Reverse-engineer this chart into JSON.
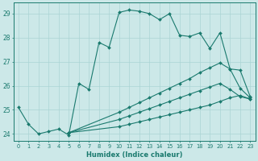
{
  "xlabel": "Humidex (Indice chaleur)",
  "xlim": [
    -0.5,
    23.5
  ],
  "ylim": [
    23.7,
    29.45
  ],
  "bg_color": "#cce8e8",
  "grid_color": "#aad4d4",
  "line_color": "#1a7a6e",
  "yticks": [
    24,
    25,
    26,
    27,
    28,
    29
  ],
  "xticks": [
    0,
    1,
    2,
    3,
    4,
    5,
    6,
    7,
    8,
    9,
    10,
    11,
    12,
    13,
    14,
    15,
    16,
    17,
    18,
    19,
    20,
    21,
    22,
    23
  ],
  "line1_x": [
    0,
    1,
    2,
    3,
    4,
    5,
    6,
    7,
    8,
    9,
    10,
    11,
    12,
    13,
    14,
    15,
    16,
    17,
    18,
    19,
    20,
    21,
    22,
    23
  ],
  "line1_y": [
    25.1,
    24.4,
    24.0,
    24.1,
    24.2,
    23.95,
    26.1,
    25.85,
    27.8,
    27.6,
    29.05,
    29.15,
    29.1,
    29.0,
    28.75,
    29.0,
    28.1,
    28.05,
    28.2,
    27.55,
    28.2,
    26.7,
    26.65,
    25.55
  ],
  "line2_x": [
    5,
    10,
    11,
    12,
    13,
    14,
    15,
    16,
    17,
    18,
    19,
    20,
    21,
    22,
    23
  ],
  "line2_y": [
    24.05,
    24.9,
    25.1,
    25.3,
    25.5,
    25.7,
    25.9,
    26.1,
    26.3,
    26.55,
    26.75,
    26.95,
    26.7,
    25.9,
    25.5
  ],
  "line3_x": [
    5,
    10,
    11,
    12,
    13,
    14,
    15,
    16,
    17,
    18,
    19,
    20,
    21,
    22,
    23
  ],
  "line3_y": [
    24.05,
    24.6,
    24.75,
    24.9,
    25.05,
    25.2,
    25.35,
    25.5,
    25.65,
    25.8,
    25.95,
    26.1,
    25.85,
    25.55,
    25.45
  ],
  "line4_x": [
    5,
    10,
    11,
    12,
    13,
    14,
    15,
    16,
    17,
    18,
    19,
    20,
    21,
    22,
    23
  ],
  "line4_y": [
    24.05,
    24.3,
    24.4,
    24.5,
    24.6,
    24.7,
    24.8,
    24.9,
    25.0,
    25.1,
    25.2,
    25.35,
    25.5,
    25.6,
    25.45
  ]
}
